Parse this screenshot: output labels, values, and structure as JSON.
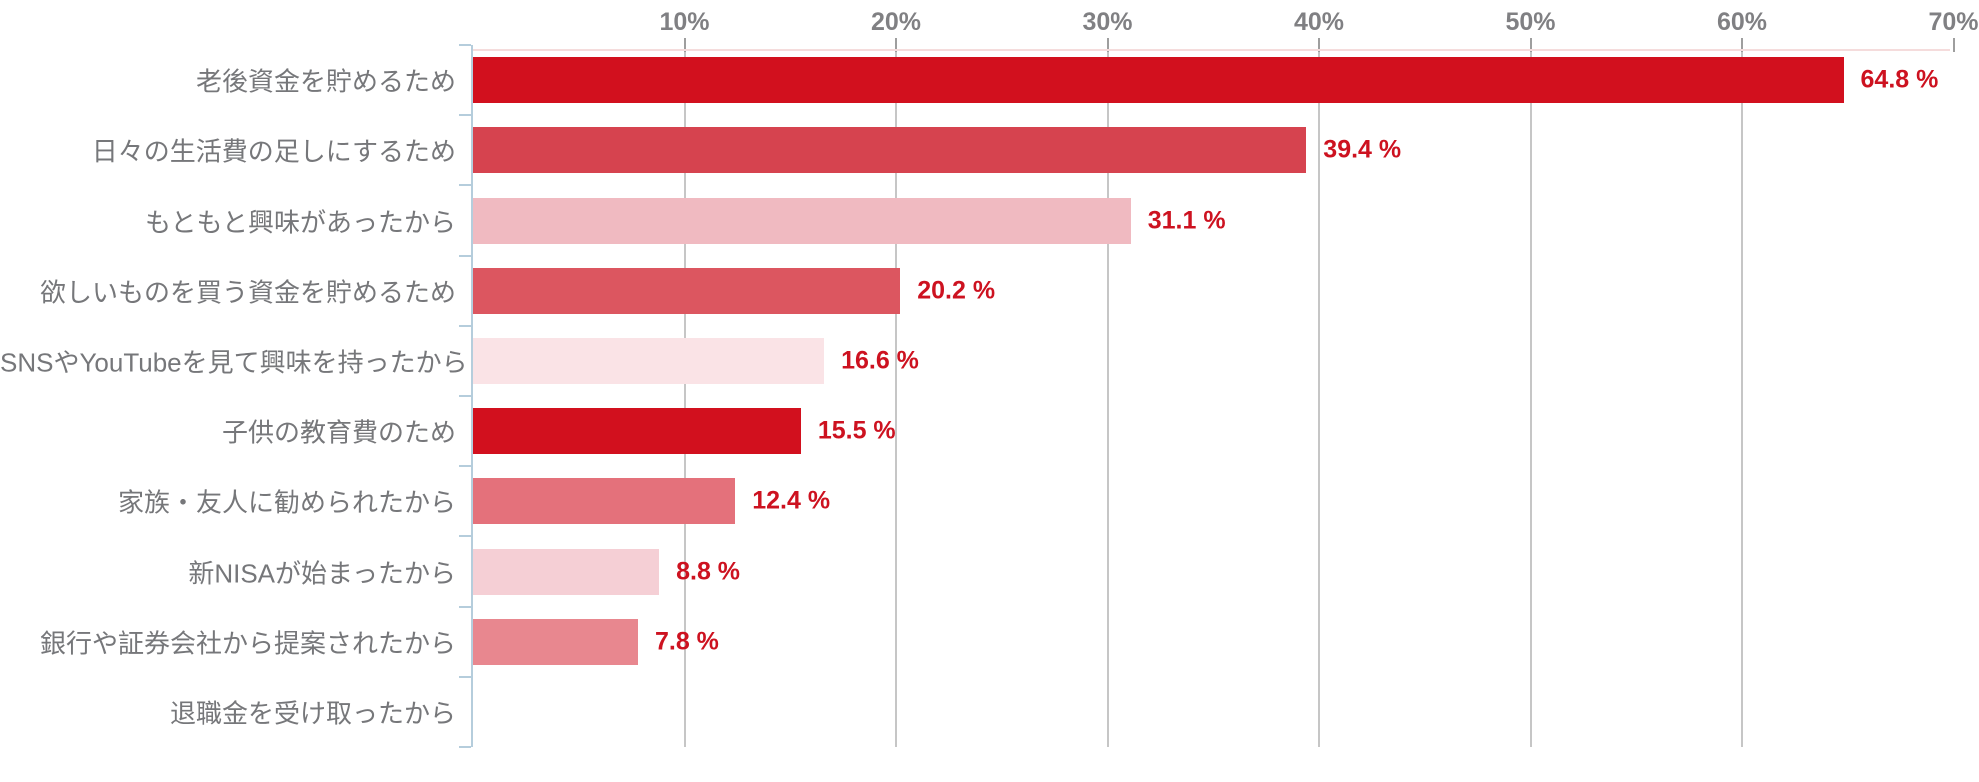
{
  "chart_data": {
    "type": "bar",
    "orientation": "horizontal",
    "title": "",
    "categories": [
      "老後資金を貯めるため",
      "日々の生活費の足しにするため",
      "もともと興味があったから",
      "欲しいものを買う資金を貯めるため",
      "SNSやYouTubeを見て興味を持ったから",
      "子供の教育費のため",
      "家族・友人に勧められたから",
      "新NISAが始まったから",
      "銀行や証券会社から提案されたから",
      "退職金を受け取ったから"
    ],
    "values": [
      64.8,
      39.4,
      31.1,
      20.2,
      16.6,
      15.5,
      12.4,
      8.8,
      7.8,
      null
    ],
    "value_labels": [
      "64.8 %",
      "39.4 %",
      "31.1 %",
      "20.2 %",
      "16.6 %",
      "15.5 %",
      "12.4 %",
      "8.8 %",
      "7.8 %",
      ""
    ],
    "bar_colors": [
      "#d2101e",
      "#d6434f",
      "#f0bac1",
      "#dc5660",
      "#fae3e6",
      "#d2101e",
      "#e4717b",
      "#f5cfd5",
      "#e8878f",
      null
    ],
    "x_axis": {
      "position": "top",
      "tick_labels": [
        "10%",
        "20%",
        "30%",
        "40%",
        "50%",
        "60%",
        "70%"
      ],
      "tick_values": [
        10,
        20,
        30,
        40,
        50,
        60,
        70
      ],
      "xlim": [
        0,
        69.8
      ]
    },
    "ylabel": "",
    "xlabel": "",
    "legend": "none",
    "grid": "vertical-gridlines"
  },
  "colors": {
    "value_label": "#cd1220",
    "axis_label": "#808083",
    "category_label": "#76777a",
    "gridline": "#c6c6c6",
    "axis_line": "#b5cddc",
    "top_tick": "#9e9e9e",
    "plot_top_line": "#f5dcdc",
    "background": "#ffffff"
  }
}
